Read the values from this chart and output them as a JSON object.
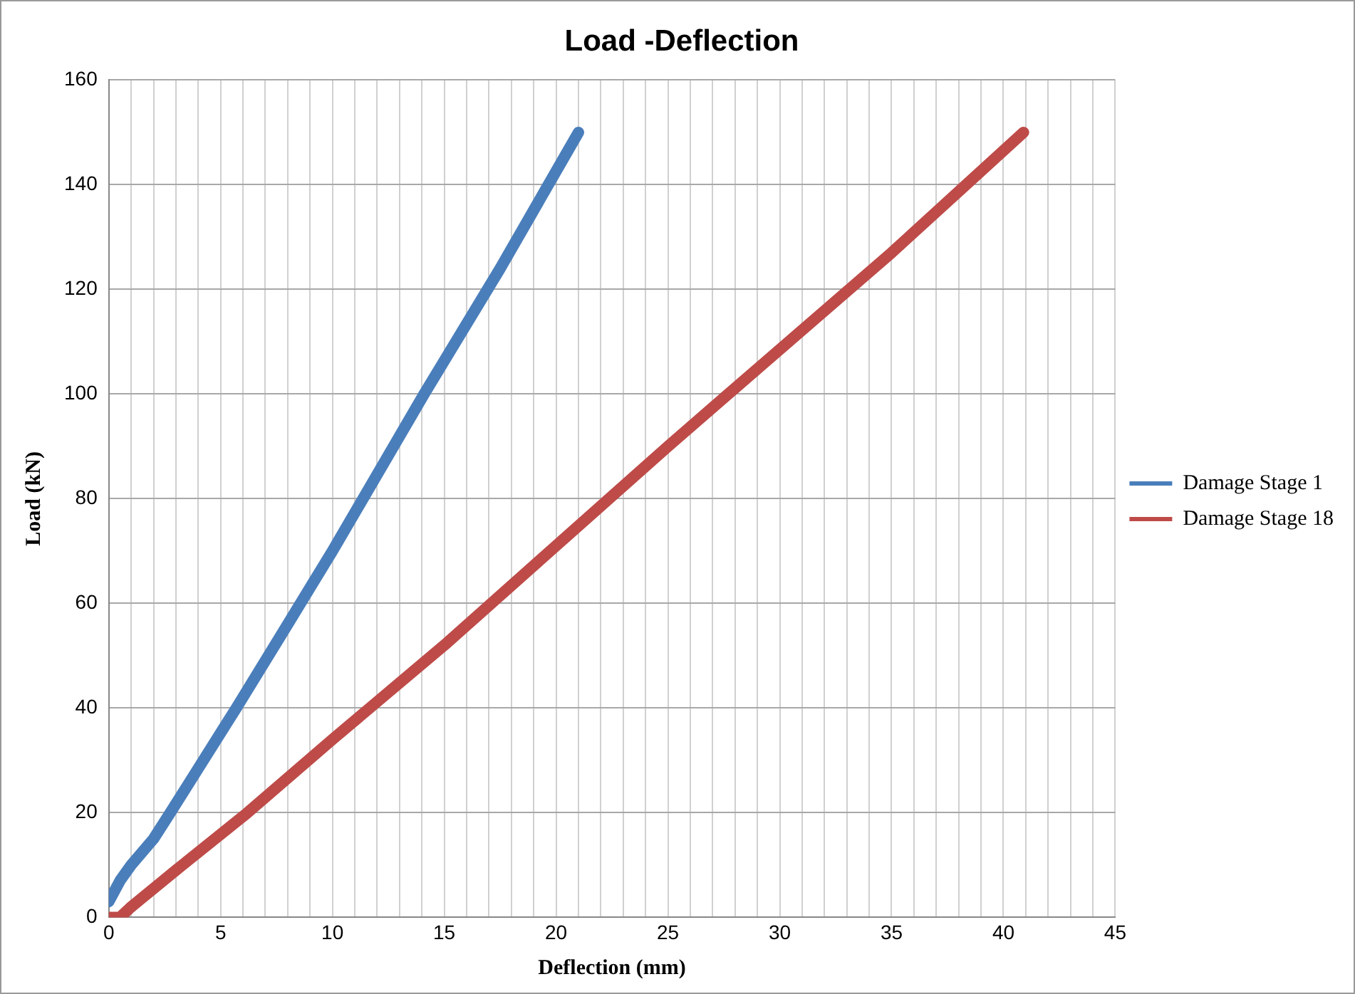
{
  "chart_data": {
    "type": "line",
    "title": "Load -Deflection",
    "xlabel": "Deflection (mm)",
    "ylabel": "Load (kN)",
    "xlim": [
      0,
      45
    ],
    "xticks": [
      0,
      {
        "value": 1,
        "label": null
      },
      {
        "value": 2,
        "label": null
      },
      {
        "value": 3,
        "label": null
      },
      {
        "value": 4,
        "label": null
      },
      5,
      {
        "value": 6,
        "label": null
      },
      {
        "value": 7,
        "label": null
      },
      {
        "value": 8,
        "label": null
      },
      {
        "value": 9,
        "label": null
      },
      10,
      {
        "value": 11,
        "label": null
      },
      {
        "value": 12,
        "label": null
      },
      {
        "value": 13,
        "label": null
      },
      {
        "value": 14,
        "label": null
      },
      15,
      {
        "value": 16,
        "label": null
      },
      {
        "value": 17,
        "label": null
      },
      {
        "value": 18,
        "label": null
      },
      {
        "value": 19,
        "label": null
      },
      20,
      {
        "value": 21,
        "label": null
      },
      {
        "value": 22,
        "label": null
      },
      {
        "value": 23,
        "label": null
      },
      {
        "value": 24,
        "label": null
      },
      25,
      {
        "value": 26,
        "label": null
      },
      {
        "value": 27,
        "label": null
      },
      {
        "value": 28,
        "label": null
      },
      {
        "value": 29,
        "label": null
      },
      30,
      {
        "value": 31,
        "label": null
      },
      {
        "value": 32,
        "label": null
      },
      {
        "value": 33,
        "label": null
      },
      {
        "value": 34,
        "label": null
      },
      35,
      {
        "value": 36,
        "label": null
      },
      {
        "value": 37,
        "label": null
      },
      {
        "value": 38,
        "label": null
      },
      {
        "value": 39,
        "label": null
      },
      40,
      {
        "value": 41,
        "label": null
      },
      {
        "value": 42,
        "label": null
      },
      {
        "value": 43,
        "label": null
      },
      {
        "value": 44,
        "label": null
      },
      45
    ],
    "ylim": [
      0,
      160
    ],
    "yticks": [
      0,
      20,
      40,
      60,
      80,
      100,
      120,
      140,
      160
    ],
    "grid": true,
    "legend": "right",
    "line_style": "solid",
    "series": [
      {
        "name": "Damage Stage 1",
        "color": "#4a7ebb",
        "x": [
          0,
          0.5,
          1,
          2,
          2.75,
          5.7,
          8,
          10,
          14.1,
          17.5,
          21
        ],
        "values": [
          3,
          7,
          10,
          15,
          20,
          40,
          56,
          70,
          100,
          124,
          150
        ]
      },
      {
        "name": "Damage Stage 18",
        "color": "#be4b48",
        "x": [
          0,
          0.5,
          1,
          3,
          6.2,
          10,
          15,
          20,
          25,
          27.7,
          35,
          40.9
        ],
        "values": [
          0,
          0,
          2,
          9,
          20,
          34,
          52,
          71,
          90,
          100,
          127,
          150
        ]
      }
    ]
  }
}
